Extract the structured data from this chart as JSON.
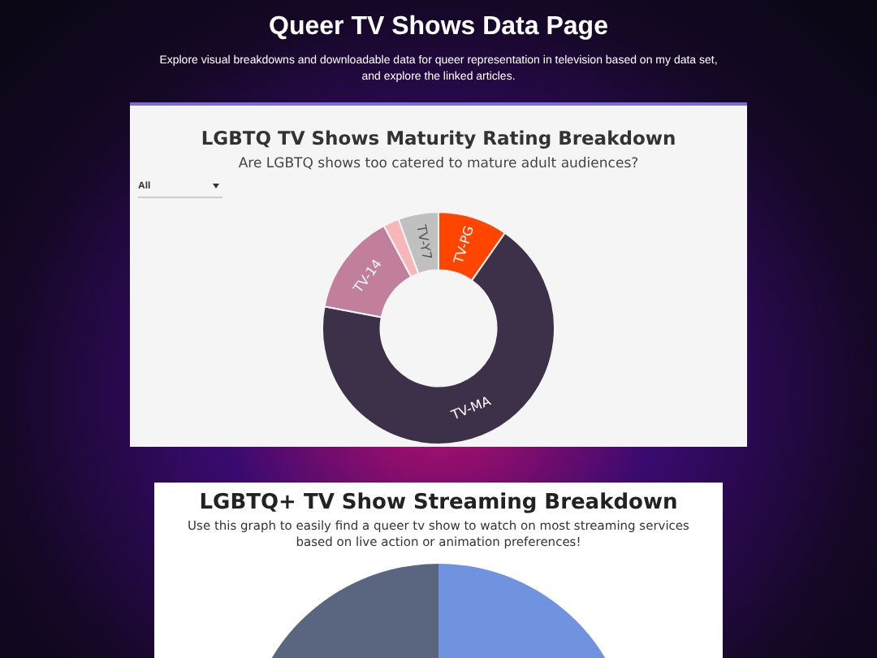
{
  "chart_data": [
    {
      "type": "other",
      "title": "Queer TV Shows Data Page",
      "subtitle": "Explore visual breakdowns and downloadable data for queer representation in television based on my data set, and explore the linked articles."
    },
    {
      "type": "donut",
      "title": "LGBTQ TV Shows Maturity Rating Breakdown",
      "subtitle": "Are LGBTQ shows too catered to mature adult audiences?",
      "categories": [
        "TV-PG",
        "TV-MA",
        "TV-14",
        null,
        "TV-Y7"
      ],
      "values": [
        9.7,
        68.3,
        14.2,
        2.2,
        5.6
      ],
      "colors": [
        "#ff4500",
        "#3d3049",
        "#c27f9c",
        "#f7b6b8",
        "#c0c0c0"
      ],
      "legend": false,
      "annotations": [
        "All"
      ]
    },
    {
      "type": "other",
      "title": "LGBTQ+ TV Show Streaming Breakdown",
      "subtitle": "Use this graph to easily find a queer tv show to watch on most streaming services based on live action or animation preferences!"
    }
  ]
}
